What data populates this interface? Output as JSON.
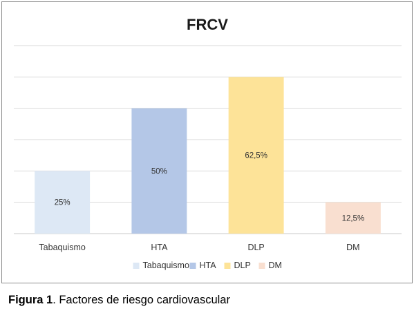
{
  "chart_data": {
    "type": "bar",
    "title": "FRCV",
    "categories": [
      "Tabaquismo",
      "HTA",
      "DLP",
      "DM"
    ],
    "values": [
      25,
      50,
      62.5,
      12.5
    ],
    "data_labels": [
      "25%",
      "50%",
      "62,5%",
      "12,5%"
    ],
    "colors": [
      "#dde8f5",
      "#b4c7e7",
      "#fde398",
      "#f9dfd0"
    ],
    "legend": [
      "Tabaquismo",
      "HTA",
      "DLP",
      "DM"
    ],
    "legend_position": "bottom",
    "ylim": [
      0,
      75
    ],
    "grid": true,
    "xlabel": "",
    "ylabel": ""
  },
  "caption": {
    "label": "Figura 1",
    "text": ". Factores de riesgo cardiovascular"
  }
}
